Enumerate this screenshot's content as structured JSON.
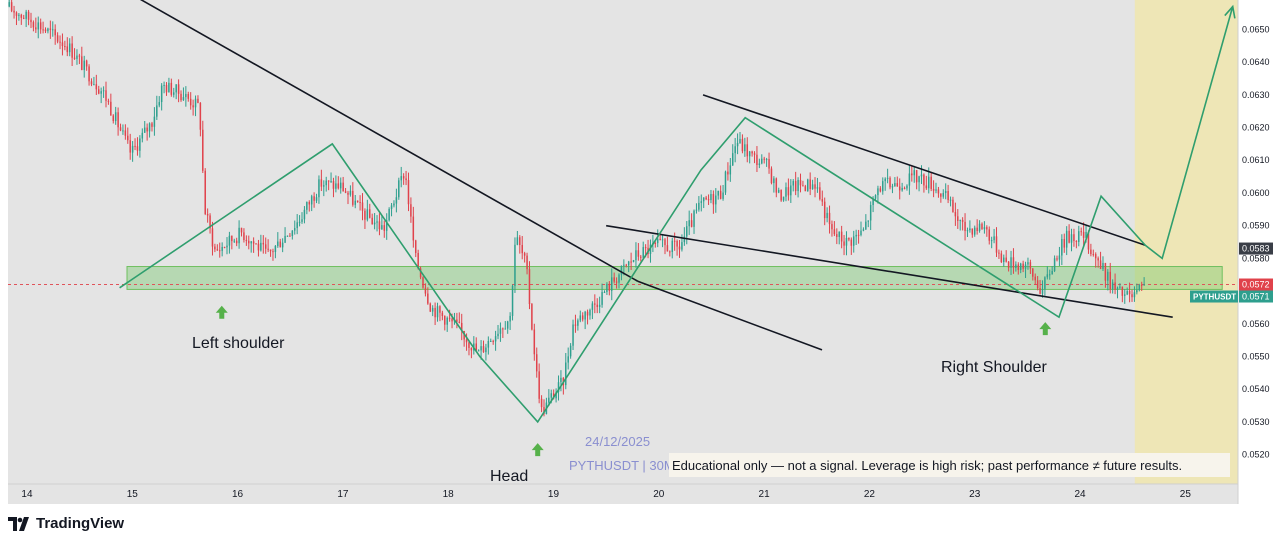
{
  "chart_data": {
    "type": "candlestick",
    "symbol_badge": "PYTHUSDT",
    "watermark": {
      "date": "24/12/2025",
      "label": "PYTHUSDT | 30M"
    },
    "disclaimer": "Educational only — not a signal. Leverage is high risk; past performance ≠ future results.",
    "x_ticks": [
      "14",
      "15",
      "16",
      "17",
      "18",
      "19",
      "20",
      "21",
      "22",
      "23",
      "24",
      "25"
    ],
    "y_ticks": [
      "0.0520",
      "0.0530",
      "0.0540",
      "0.0550",
      "0.0560",
      "0.0570",
      "0.0580",
      "0.0590",
      "0.0600",
      "0.0610",
      "0.0620",
      "0.0630",
      "0.0640",
      "0.0650"
    ],
    "ylim": [
      0.0511,
      0.0659
    ],
    "xlim": [
      13.82,
      25.5
    ],
    "current_price": "0.0572",
    "badge_price": "0.0571",
    "upper_line_price": "0.0583",
    "annotations": {
      "left_shoulder": "Left shoulder",
      "head": "Head",
      "right_shoulder": "Right Shoulder"
    },
    "neckline_zone": {
      "from_day": 14.95,
      "to_day": 25.35,
      "low": 0.05705,
      "high": 0.05775
    },
    "price_path": [
      [
        13.82,
        0.0657
      ],
      [
        14.1,
        0.0652
      ],
      [
        14.4,
        0.0645
      ],
      [
        14.75,
        0.063
      ],
      [
        15.0,
        0.0612
      ],
      [
        15.2,
        0.0622
      ],
      [
        15.3,
        0.0633
      ],
      [
        15.5,
        0.063
      ],
      [
        15.65,
        0.0626
      ],
      [
        15.7,
        0.0595
      ],
      [
        15.8,
        0.0582
      ],
      [
        16.05,
        0.0588
      ],
      [
        16.3,
        0.0581
      ],
      [
        16.6,
        0.0592
      ],
      [
        16.8,
        0.0603
      ],
      [
        17.0,
        0.0602
      ],
      [
        17.2,
        0.0594
      ],
      [
        17.4,
        0.0589
      ],
      [
        17.6,
        0.0607
      ],
      [
        17.7,
        0.058
      ],
      [
        17.85,
        0.0565
      ],
      [
        18.1,
        0.0559
      ],
      [
        18.3,
        0.0551
      ],
      [
        18.5,
        0.0559
      ],
      [
        18.6,
        0.0562
      ],
      [
        18.65,
        0.0587
      ],
      [
        18.75,
        0.0578
      ],
      [
        18.85,
        0.0545
      ],
      [
        18.9,
        0.0533
      ],
      [
        19.0,
        0.0538
      ],
      [
        19.1,
        0.0542
      ],
      [
        19.2,
        0.056
      ],
      [
        19.4,
        0.0566
      ],
      [
        19.6,
        0.0574
      ],
      [
        19.8,
        0.0581
      ],
      [
        20.0,
        0.0584
      ],
      [
        20.2,
        0.0583
      ],
      [
        20.4,
        0.0596
      ],
      [
        20.6,
        0.06
      ],
      [
        20.75,
        0.0616
      ],
      [
        20.9,
        0.0611
      ],
      [
        21.05,
        0.0608
      ],
      [
        21.15,
        0.0599
      ],
      [
        21.3,
        0.0602
      ],
      [
        21.5,
        0.0603
      ],
      [
        21.65,
        0.0588
      ],
      [
        21.8,
        0.0585
      ],
      [
        21.95,
        0.0588
      ],
      [
        22.1,
        0.0602
      ],
      [
        22.3,
        0.0603
      ],
      [
        22.45,
        0.0605
      ],
      [
        22.6,
        0.0603
      ],
      [
        22.75,
        0.0598
      ],
      [
        22.9,
        0.0589
      ],
      [
        23.1,
        0.059
      ],
      [
        23.3,
        0.0579
      ],
      [
        23.5,
        0.0578
      ],
      [
        23.65,
        0.057
      ],
      [
        23.8,
        0.0582
      ],
      [
        23.9,
        0.0587
      ],
      [
        24.05,
        0.0587
      ],
      [
        24.2,
        0.0578
      ],
      [
        24.35,
        0.057
      ],
      [
        24.5,
        0.0568
      ],
      [
        24.62,
        0.0571
      ]
    ],
    "trendlines_black": [
      {
        "from": [
          14.65,
          0.0667
        ],
        "to": [
          19.8,
          0.0573
        ]
      },
      {
        "from": [
          19.8,
          0.0573
        ],
        "to": [
          21.55,
          0.0552
        ]
      },
      {
        "from": [
          20.42,
          0.063
        ],
        "to": [
          24.62,
          0.0584
        ]
      },
      {
        "from": [
          19.5,
          0.059
        ],
        "to": [
          24.88,
          0.0562
        ]
      }
    ],
    "pattern_path_green": [
      [
        14.88,
        0.0571
      ],
      [
        16.9,
        0.0615
      ],
      [
        18.3,
        0.055
      ],
      [
        18.85,
        0.053
      ],
      [
        20.4,
        0.0607
      ],
      [
        20.82,
        0.0623
      ],
      [
        23.8,
        0.0562
      ],
      [
        24.2,
        0.0599
      ],
      [
        24.62,
        0.0584
      ],
      [
        24.78,
        0.058
      ],
      [
        25.45,
        0.0657
      ]
    ],
    "shoulder_arrows": [
      {
        "day": 15.85,
        "price": 0.05655
      },
      {
        "day": 18.85,
        "price": 0.05235
      },
      {
        "day": 23.67,
        "price": 0.05605
      }
    ]
  }
}
